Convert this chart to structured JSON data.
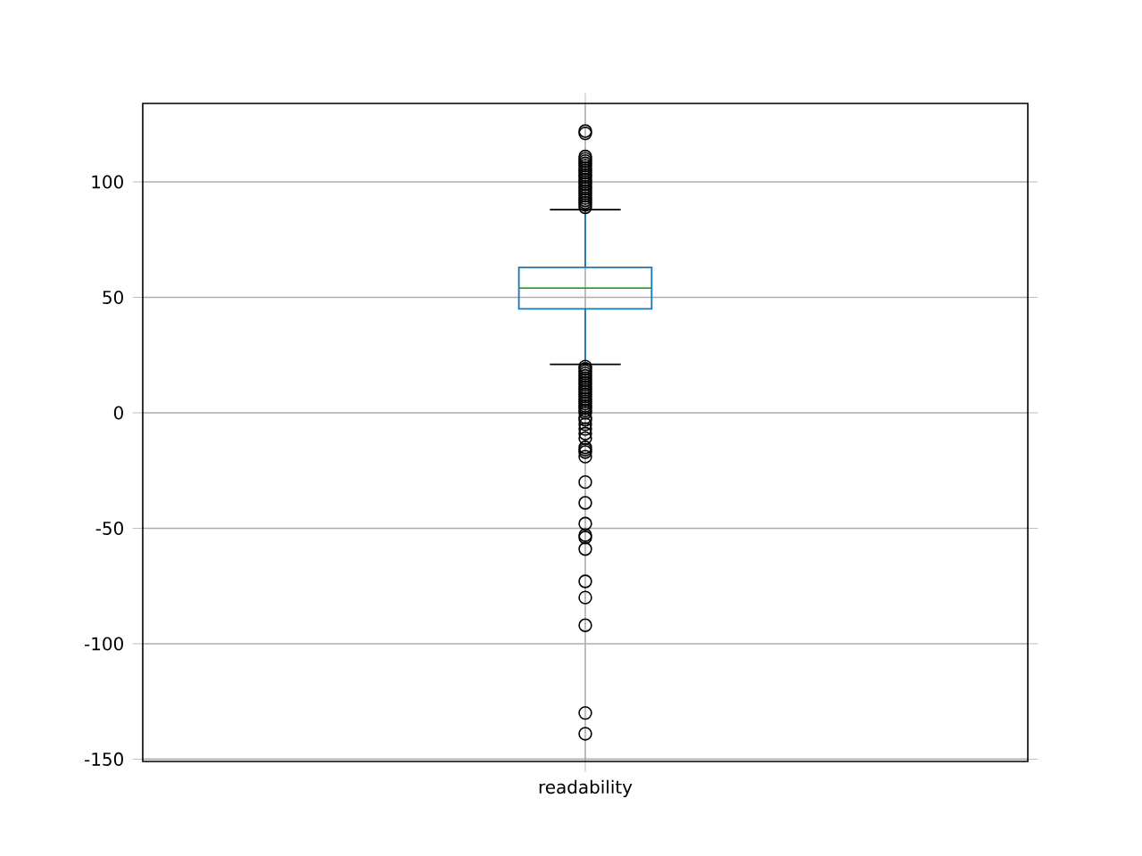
{
  "chart_data": {
    "type": "box",
    "categories": [
      "readability"
    ],
    "series": [
      {
        "color": "#1f77b4",
        "boxes": [
          {
            "low": 21,
            "q1": 45,
            "median": 54,
            "q3": 63,
            "high": 88,
            "outliers": [
              122,
              121,
              111,
              110,
              109,
              108,
              107,
              106,
              105,
              104,
              103,
              102,
              101,
              100,
              99,
              98,
              97,
              96,
              95,
              94,
              93,
              92,
              91,
              90,
              89,
              20,
              19,
              18,
              17,
              16,
              15,
              14,
              13,
              12,
              11,
              10,
              9,
              8,
              7,
              6,
              5,
              4,
              3,
              2,
              1,
              0,
              -2,
              -3,
              -5,
              -7,
              -9,
              -11,
              -15,
              -16,
              -17,
              -19,
              -30,
              -39,
              -48,
              -53,
              -54,
              -59,
              -73,
              -80,
              -92,
              -130,
              -139
            ]
          }
        ]
      }
    ],
    "ylim": [
      -151,
      134
    ],
    "yticks": [
      -150,
      -100,
      -50,
      0,
      50,
      100
    ],
    "grid": true,
    "marker": "circle"
  }
}
